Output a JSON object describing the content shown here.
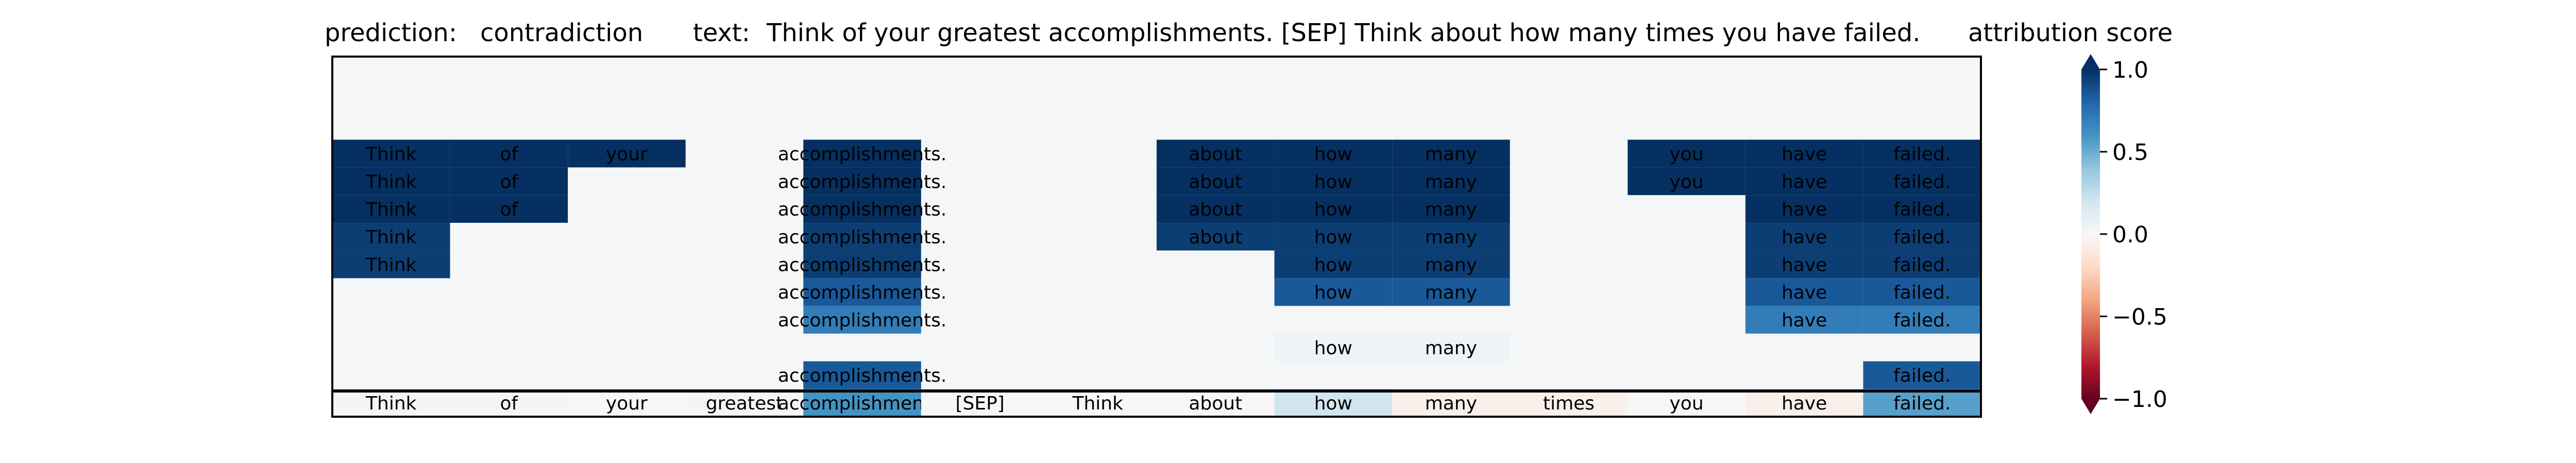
{
  "chart_data": {
    "type": "heatmap",
    "header": {
      "prediction_label": "prediction:",
      "prediction_value": "contradiction",
      "text_label": "text:",
      "text_value": "Think of your greatest accomplishments. [SEP] Think about how many times you have failed."
    },
    "colorbar": {
      "title": "attribution score",
      "range": [
        -1.0,
        1.0
      ],
      "ticks": [
        "1.0",
        "0.5",
        "0.0",
        "−0.5",
        "−1.0"
      ],
      "colormap": "RdBu"
    },
    "tokens": [
      "Think",
      "of",
      "your",
      "greatest",
      "accomplishments.",
      "[SEP]",
      "Think",
      "about",
      "how",
      "many",
      "times",
      "you",
      "have",
      "failed."
    ],
    "rows": [
      [
        null,
        null,
        null,
        null,
        null,
        null,
        null,
        null,
        null,
        null,
        null,
        null,
        null,
        null
      ],
      [
        null,
        null,
        null,
        null,
        null,
        null,
        null,
        null,
        null,
        null,
        null,
        null,
        null,
        null
      ],
      [
        null,
        null,
        null,
        null,
        null,
        null,
        null,
        null,
        null,
        null,
        null,
        null,
        null,
        null
      ],
      [
        1.0,
        1.0,
        1.0,
        null,
        1.0,
        null,
        null,
        1.0,
        1.0,
        1.0,
        null,
        1.0,
        1.0,
        1.0
      ],
      [
        1.0,
        1.0,
        null,
        null,
        1.0,
        null,
        null,
        1.0,
        1.0,
        1.0,
        null,
        1.0,
        1.0,
        1.0
      ],
      [
        1.0,
        1.0,
        null,
        null,
        1.0,
        null,
        null,
        1.0,
        1.0,
        1.0,
        null,
        null,
        1.0,
        1.0
      ],
      [
        0.95,
        null,
        null,
        null,
        0.95,
        null,
        null,
        0.95,
        0.95,
        0.95,
        null,
        null,
        0.95,
        0.95
      ],
      [
        0.95,
        null,
        null,
        null,
        0.95,
        null,
        null,
        null,
        0.95,
        0.95,
        null,
        null,
        0.95,
        0.95
      ],
      [
        null,
        null,
        null,
        null,
        0.85,
        null,
        null,
        null,
        0.85,
        0.85,
        null,
        null,
        0.85,
        0.85
      ],
      [
        null,
        null,
        null,
        null,
        0.7,
        null,
        null,
        null,
        null,
        null,
        null,
        null,
        0.7,
        0.7
      ],
      [
        null,
        null,
        null,
        null,
        null,
        null,
        null,
        null,
        0.05,
        0.05,
        null,
        null,
        null,
        null
      ],
      [
        null,
        null,
        null,
        null,
        0.85,
        null,
        null,
        null,
        null,
        null,
        null,
        null,
        null,
        0.85
      ],
      [
        0.02,
        0.02,
        0.0,
        0.02,
        0.6,
        0.0,
        0.0,
        0.0,
        0.2,
        -0.05,
        -0.05,
        0.0,
        -0.05,
        0.55
      ]
    ]
  }
}
